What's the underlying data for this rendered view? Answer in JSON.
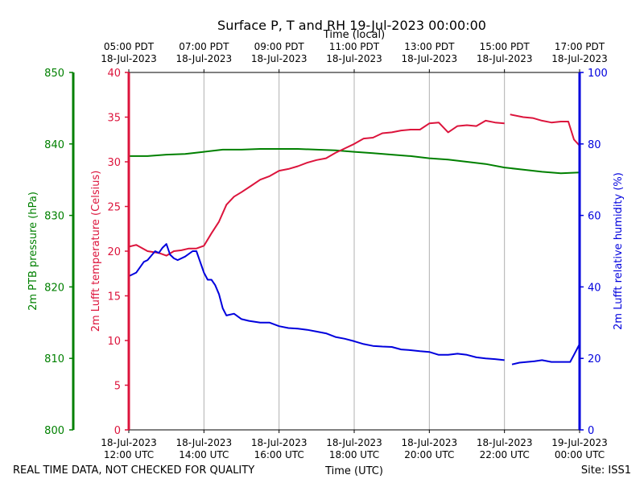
{
  "chart_data": {
    "type": "line",
    "title": "Surface P, T and RH 19-Jul-2023 00:00:00",
    "xlabel_bottom": "Time (UTC)",
    "xlabel_top": "Time (local)",
    "footer_left": "REAL TIME DATA, NOT CHECKED FOR QUALITY",
    "footer_right": "Site: ISS1",
    "x_range_hours_utc": [
      12,
      24
    ],
    "bottom_ticks": [
      {
        "h": 12,
        "date": "18-Jul-2023",
        "time": "12:00 UTC"
      },
      {
        "h": 14,
        "date": "18-Jul-2023",
        "time": "14:00 UTC"
      },
      {
        "h": 16,
        "date": "18-Jul-2023",
        "time": "16:00 UTC"
      },
      {
        "h": 18,
        "date": "18-Jul-2023",
        "time": "18:00 UTC"
      },
      {
        "h": 20,
        "date": "18-Jul-2023",
        "time": "20:00 UTC"
      },
      {
        "h": 22,
        "date": "18-Jul-2023",
        "time": "22:00 UTC"
      },
      {
        "h": 24,
        "date": "19-Jul-2023",
        "time": "00:00 UTC"
      }
    ],
    "top_ticks": [
      {
        "h": 12,
        "time": "05:00 PDT",
        "date": "18-Jul-2023"
      },
      {
        "h": 14,
        "time": "07:00 PDT",
        "date": "18-Jul-2023"
      },
      {
        "h": 16,
        "time": "09:00 PDT",
        "date": "18-Jul-2023"
      },
      {
        "h": 18,
        "time": "11:00 PDT",
        "date": "18-Jul-2023"
      },
      {
        "h": 20,
        "time": "13:00 PDT",
        "date": "18-Jul-2023"
      },
      {
        "h": 22,
        "time": "15:00 PDT",
        "date": "18-Jul-2023"
      },
      {
        "h": 24,
        "time": "17:00 PDT",
        "date": "18-Jul-2023"
      }
    ],
    "axes": {
      "pressure": {
        "label": "2m PTB pressure (hPa)",
        "range": [
          800,
          850
        ],
        "ticks": [
          800,
          810,
          820,
          830,
          840,
          850
        ],
        "color": "#008000"
      },
      "temperature": {
        "label": "2m Lufft temperature (Celsius)",
        "range": [
          0,
          40
        ],
        "ticks": [
          0,
          5,
          10,
          15,
          20,
          25,
          30,
          35,
          40
        ],
        "color": "#dc143c"
      },
      "humidity": {
        "label": "2m Lufft relative humidity (%)",
        "range": [
          0,
          100
        ],
        "ticks": [
          0,
          20,
          40,
          60,
          80,
          100
        ],
        "color": "#0000dd"
      }
    },
    "grid": "vertical",
    "series": [
      {
        "name": "2m PTB pressure (hPa)",
        "axis": "pressure",
        "color": "#008000",
        "x": [
          12.0,
          12.5,
          13.0,
          13.5,
          14.0,
          14.5,
          15.0,
          15.5,
          16.0,
          16.5,
          17.0,
          17.5,
          18.0,
          18.5,
          19.0,
          19.5,
          20.0,
          20.5,
          21.0,
          21.5,
          22.0,
          22.5,
          23.0,
          23.5,
          24.0
        ],
        "y": [
          838.3,
          838.3,
          838.5,
          838.6,
          838.9,
          839.2,
          839.2,
          839.3,
          839.3,
          839.3,
          839.2,
          839.1,
          838.9,
          838.7,
          838.5,
          838.3,
          838.0,
          837.8,
          837.5,
          837.2,
          836.7,
          836.4,
          836.1,
          835.9,
          836.0
        ]
      },
      {
        "name": "2m Lufft temperature (Celsius)",
        "axis": "temperature",
        "color": "#dc143c",
        "x": [
          12.0,
          12.2,
          12.5,
          12.8,
          13.0,
          13.2,
          13.4,
          13.6,
          13.8,
          14.0,
          14.2,
          14.4,
          14.6,
          14.8,
          15.0,
          15.25,
          15.5,
          15.75,
          16.0,
          16.25,
          16.5,
          16.75,
          17.0,
          17.25,
          17.5,
          17.75,
          18.0,
          18.25,
          18.5,
          18.75,
          19.0,
          19.25,
          19.5,
          19.75,
          20.0,
          20.25,
          20.5,
          20.75,
          21.0,
          21.25,
          21.5,
          21.75,
          22.0,
          null,
          22.15,
          22.5,
          22.75,
          23.0,
          23.25,
          23.5,
          23.7,
          23.85,
          24.0
        ],
        "y": [
          20.5,
          20.7,
          20.0,
          19.8,
          19.5,
          20.0,
          20.1,
          20.3,
          20.3,
          20.6,
          22.0,
          23.3,
          25.2,
          26.1,
          26.6,
          27.3,
          28.0,
          28.4,
          29.0,
          29.2,
          29.5,
          29.9,
          30.2,
          30.4,
          31.0,
          31.5,
          32.0,
          32.6,
          32.7,
          33.2,
          33.3,
          33.5,
          33.6,
          33.6,
          34.3,
          34.4,
          33.3,
          34.0,
          34.1,
          34.0,
          34.6,
          34.4,
          34.3,
          null,
          35.3,
          35.0,
          34.9,
          34.6,
          34.4,
          34.5,
          34.5,
          32.5,
          31.8
        ]
      },
      {
        "name": "2m Lufft relative humidity (%)",
        "axis": "humidity",
        "color": "#0000dd",
        "x": [
          12.0,
          12.2,
          12.4,
          12.5,
          12.7,
          12.8,
          12.9,
          13.0,
          13.1,
          13.2,
          13.3,
          13.5,
          13.7,
          13.8,
          14.0,
          14.1,
          14.2,
          14.3,
          14.4,
          14.5,
          14.6,
          14.8,
          15.0,
          15.2,
          15.5,
          15.75,
          16.0,
          16.25,
          16.5,
          16.75,
          17.0,
          17.25,
          17.5,
          17.75,
          18.0,
          18.25,
          18.5,
          18.75,
          19.0,
          19.25,
          19.5,
          19.75,
          20.0,
          20.25,
          20.5,
          20.75,
          21.0,
          21.25,
          21.5,
          21.75,
          22.0,
          null,
          22.2,
          22.4,
          22.6,
          22.8,
          23.0,
          23.25,
          23.5,
          23.75,
          23.85,
          24.0
        ],
        "y": [
          43.0,
          44.0,
          47.0,
          47.5,
          50.0,
          49.5,
          51.0,
          52.0,
          49.0,
          48.0,
          47.5,
          48.5,
          50.0,
          50.0,
          44.0,
          42.0,
          42.0,
          40.5,
          38.0,
          34.0,
          32.0,
          32.5,
          31.0,
          30.5,
          30.0,
          30.0,
          29.0,
          28.5,
          28.3,
          28.0,
          27.5,
          27.0,
          26.0,
          25.5,
          24.8,
          24.0,
          23.5,
          23.3,
          23.2,
          22.5,
          22.3,
          22.0,
          21.8,
          21.0,
          21.0,
          21.3,
          21.0,
          20.3,
          20.0,
          19.8,
          19.5,
          null,
          18.3,
          18.8,
          19.0,
          19.2,
          19.5,
          19.0,
          19.0,
          19.0,
          21.0,
          24.0
        ]
      }
    ]
  }
}
